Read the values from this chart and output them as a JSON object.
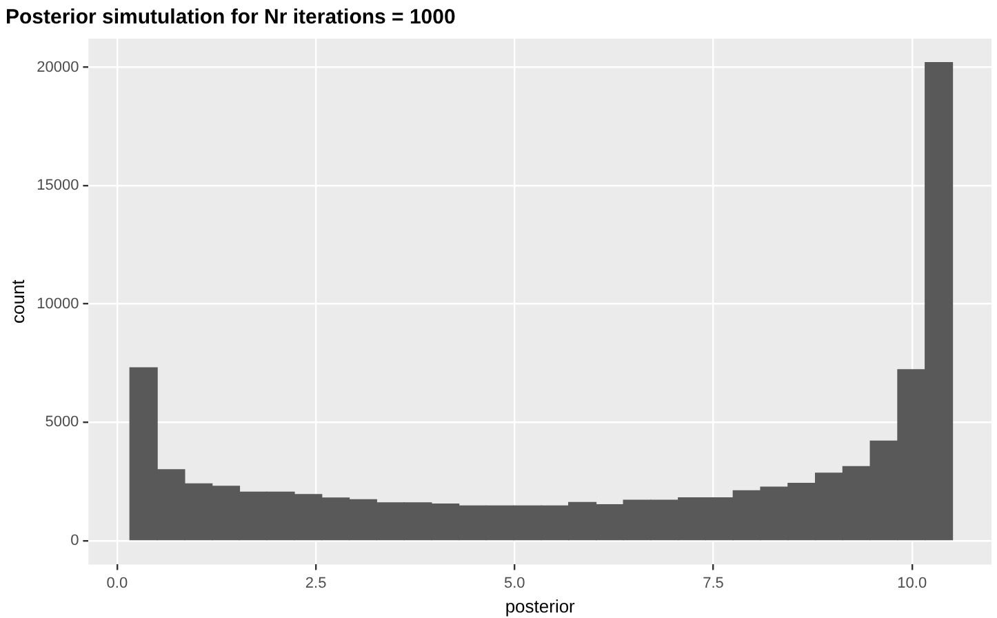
{
  "chart_data": {
    "type": "histogram",
    "title": "Posterior simutulation for Nr iterations = 1000",
    "xlabel": "posterior",
    "ylabel": "count",
    "bins": [
      0.16,
      0.505,
      0.85,
      1.195,
      1.54,
      1.885,
      2.23,
      2.575,
      2.92,
      3.265,
      3.61,
      3.955,
      4.3,
      4.645,
      4.99,
      5.335,
      5.68,
      6.025,
      6.37,
      6.715,
      7.06,
      7.405,
      7.75,
      8.095,
      8.44,
      8.785,
      9.13,
      9.475,
      9.82,
      10.165,
      10.51
    ],
    "values": [
      7300,
      3000,
      2400,
      2300,
      2050,
      2050,
      1950,
      1800,
      1730,
      1600,
      1600,
      1550,
      1470,
      1470,
      1470,
      1470,
      1610,
      1520,
      1710,
      1710,
      1810,
      1810,
      2110,
      2260,
      2420,
      2850,
      3130,
      4210,
      7220,
      20200
    ],
    "color": "#595959",
    "xlim": [
      -0.36,
      11.0
    ],
    "xticks": [
      {
        "value": 0,
        "label": "0.0"
      },
      2.5,
      {
        "value": 5,
        "label": "5.0"
      },
      7.5,
      {
        "value": 10,
        "label": "10.0"
      }
    ],
    "ylim": [
      -1010,
      21210
    ],
    "yticks": [
      0,
      5000,
      10000,
      15000,
      20000
    ],
    "grid": true,
    "legend": false
  }
}
